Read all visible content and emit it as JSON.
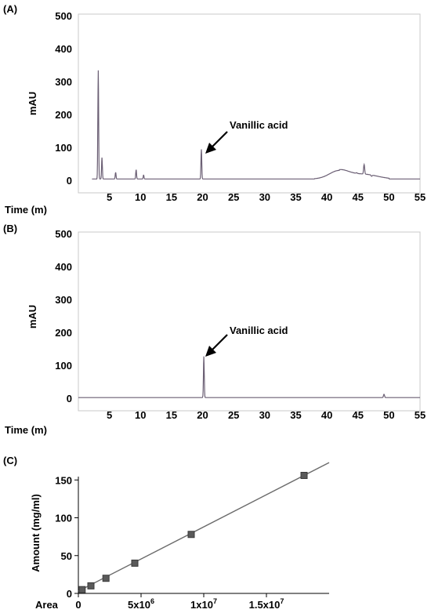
{
  "chart_data": [
    {
      "type": "line",
      "panel_label": "(A)",
      "ylabel": "mAU",
      "xlabel": "Time (m)",
      "xlim": [
        0,
        55
      ],
      "ylim": [
        0,
        500
      ],
      "xticks": [
        "5",
        "10",
        "15",
        "20",
        "25",
        "30",
        "35",
        "40",
        "45",
        "50",
        "55"
      ],
      "yticks": [
        "0",
        "100",
        "200",
        "300",
        "400",
        "500"
      ],
      "annotation": {
        "text": "Vanillic acid",
        "x": 19.8,
        "y": 90
      },
      "peaks": [
        {
          "x": 3.2,
          "y": 330
        },
        {
          "x": 3.8,
          "y": 65
        },
        {
          "x": 6.0,
          "y": 20
        },
        {
          "x": 9.3,
          "y": 28
        },
        {
          "x": 10.5,
          "y": 12
        },
        {
          "x": 19.8,
          "y": 90
        },
        {
          "x": 44.8,
          "y": 28
        },
        {
          "x": 46.0,
          "y": 55
        },
        {
          "x": 47.2,
          "y": 22
        }
      ]
    },
    {
      "type": "line",
      "panel_label": "(B)",
      "ylabel": "mAU",
      "xlabel": "Time (m)",
      "xlim": [
        0,
        55
      ],
      "ylim": [
        0,
        500
      ],
      "xticks": [
        "5",
        "10",
        "15",
        "20",
        "25",
        "30",
        "35",
        "40",
        "45",
        "50",
        "55"
      ],
      "yticks": [
        "0",
        "100",
        "200",
        "300",
        "400",
        "500"
      ],
      "annotation": {
        "text": "Vanillic acid",
        "x": 20.2,
        "y": 125
      },
      "peaks": [
        {
          "x": 20.2,
          "y": 125
        },
        {
          "x": 49.2,
          "y": 10
        }
      ]
    },
    {
      "type": "scatter",
      "panel_label": "(C)",
      "ylabel": "Amount (mg/ml)",
      "xlabel": "Area",
      "xlim": [
        0,
        20000000
      ],
      "ylim": [
        0,
        170
      ],
      "yticks": [
        "0",
        "50",
        "100",
        "150"
      ],
      "xticks": [
        {
          "value": 0,
          "label": "0"
        },
        {
          "value": 5000000,
          "label": "5x10",
          "exp": "6"
        },
        {
          "value": 10000000,
          "label": "1x10",
          "exp": "7"
        },
        {
          "value": 15000000,
          "label": "1.5x10",
          "exp": "7"
        }
      ],
      "points": [
        {
          "x": 300000,
          "y": 5
        },
        {
          "x": 1000000,
          "y": 10
        },
        {
          "x": 2200000,
          "y": 20
        },
        {
          "x": 4500000,
          "y": 40
        },
        {
          "x": 9000000,
          "y": 78
        },
        {
          "x": 18000000,
          "y": 156
        }
      ],
      "fit_line": {
        "x": [
          0,
          20000000
        ],
        "y": [
          3,
          173
        ]
      }
    }
  ]
}
